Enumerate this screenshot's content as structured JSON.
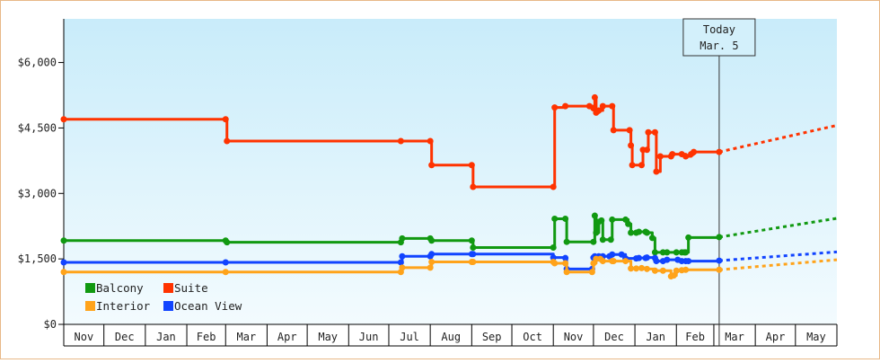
{
  "chart_data": {
    "type": "line",
    "title": "",
    "xlabel": "",
    "ylabel": "",
    "ylim": [
      0,
      7000
    ],
    "y_ticks": [
      {
        "value": 0,
        "label": "$0"
      },
      {
        "value": 1500,
        "label": "$1,500"
      },
      {
        "value": 3000,
        "label": "$3,000"
      },
      {
        "value": 4500,
        "label": "$4,500"
      },
      {
        "value": 6000,
        "label": "$6,000"
      }
    ],
    "x_months": [
      "Nov",
      "Dec",
      "Jan",
      "Feb",
      "Mar",
      "Apr",
      "May",
      "Jun",
      "Jul",
      "Aug",
      "Sep",
      "Oct",
      "Nov",
      "Dec",
      "Jan",
      "Feb",
      "Mar",
      "Apr",
      "May"
    ],
    "x_start": "2023-11-01",
    "x_end": "2025-06-01",
    "today": {
      "label_line1": "Today",
      "label_line2": "Mar. 5",
      "date": "2025-03-05"
    },
    "projection_end": "2025-06-01",
    "grid": false,
    "legend_position": "bottom-left",
    "series": [
      {
        "name": "Suite",
        "color": "#ff3300",
        "points": [
          [
            "2023-11-01",
            4700
          ],
          [
            "2024-03-01",
            4700
          ],
          [
            "2024-03-02",
            4200
          ],
          [
            "2024-07-10",
            4200
          ],
          [
            "2024-08-01",
            4200
          ],
          [
            "2024-08-02",
            3650
          ],
          [
            "2024-09-01",
            3650
          ],
          [
            "2024-09-02",
            3150
          ],
          [
            "2024-11-01",
            3150
          ],
          [
            "2024-11-02",
            4970
          ],
          [
            "2024-11-10",
            5000
          ],
          [
            "2024-11-28",
            5000
          ],
          [
            "2024-12-01",
            4950
          ],
          [
            "2024-12-02",
            5200
          ],
          [
            "2024-12-03",
            4850
          ],
          [
            "2024-12-05",
            4900
          ],
          [
            "2024-12-08",
            5000
          ],
          [
            "2024-12-15",
            5000
          ],
          [
            "2024-12-16",
            4450
          ],
          [
            "2024-12-28",
            4450
          ],
          [
            "2024-12-29",
            4100
          ],
          [
            "2024-12-30",
            3650
          ],
          [
            "2025-01-06",
            3650
          ],
          [
            "2025-01-07",
            4000
          ],
          [
            "2025-01-10",
            4000
          ],
          [
            "2025-01-11",
            4400
          ],
          [
            "2025-01-16",
            4400
          ],
          [
            "2025-01-17",
            3500
          ],
          [
            "2025-01-20",
            3850
          ],
          [
            "2025-01-28",
            3850
          ],
          [
            "2025-01-29",
            3900
          ],
          [
            "2025-02-05",
            3900
          ],
          [
            "2025-02-08",
            3850
          ],
          [
            "2025-02-12",
            3900
          ],
          [
            "2025-02-14",
            3950
          ],
          [
            "2025-03-05",
            3950
          ]
        ],
        "projection": [
          [
            "2025-03-05",
            3950
          ],
          [
            "2025-06-01",
            4560
          ]
        ]
      },
      {
        "name": "Balcony",
        "color": "#119911",
        "points": [
          [
            "2023-11-01",
            1920
          ],
          [
            "2024-03-01",
            1920
          ],
          [
            "2024-03-02",
            1880
          ],
          [
            "2024-07-10",
            1880
          ],
          [
            "2024-07-11",
            1970
          ],
          [
            "2024-08-01",
            1970
          ],
          [
            "2024-08-02",
            1920
          ],
          [
            "2024-09-01",
            1920
          ],
          [
            "2024-09-02",
            1760
          ],
          [
            "2024-11-01",
            1760
          ],
          [
            "2024-11-02",
            2420
          ],
          [
            "2024-11-10",
            2420
          ],
          [
            "2024-11-11",
            1890
          ],
          [
            "2024-12-01",
            1890
          ],
          [
            "2024-12-02",
            2490
          ],
          [
            "2024-12-03",
            2100
          ],
          [
            "2024-12-05",
            2350
          ],
          [
            "2024-12-07",
            2380
          ],
          [
            "2024-12-08",
            1940
          ],
          [
            "2024-12-14",
            1940
          ],
          [
            "2024-12-15",
            2400
          ],
          [
            "2024-12-25",
            2400
          ],
          [
            "2024-12-27",
            2300
          ],
          [
            "2024-12-29",
            2100
          ],
          [
            "2025-01-02",
            2100
          ],
          [
            "2025-01-04",
            2120
          ],
          [
            "2025-01-09",
            2120
          ],
          [
            "2025-01-10",
            2100
          ],
          [
            "2025-01-14",
            1980
          ],
          [
            "2025-01-16",
            1650
          ],
          [
            "2025-01-22",
            1650
          ],
          [
            "2025-01-25",
            1650
          ],
          [
            "2025-02-01",
            1650
          ],
          [
            "2025-02-05",
            1650
          ],
          [
            "2025-02-07",
            1650
          ],
          [
            "2025-02-08",
            1650
          ],
          [
            "2025-02-10",
            1990
          ],
          [
            "2025-03-05",
            2000
          ]
        ],
        "projection": [
          [
            "2025-03-05",
            2000
          ],
          [
            "2025-06-01",
            2430
          ]
        ]
      },
      {
        "name": "Ocean View",
        "color": "#1144ff",
        "points": [
          [
            "2023-11-01",
            1420
          ],
          [
            "2024-03-01",
            1420
          ],
          [
            "2024-07-10",
            1420
          ],
          [
            "2024-07-11",
            1560
          ],
          [
            "2024-08-01",
            1560
          ],
          [
            "2024-08-02",
            1610
          ],
          [
            "2024-09-01",
            1610
          ],
          [
            "2024-09-02",
            1610
          ],
          [
            "2024-11-01",
            1530
          ],
          [
            "2024-11-10",
            1520
          ],
          [
            "2024-11-11",
            1270
          ],
          [
            "2024-11-30",
            1270
          ],
          [
            "2024-12-01",
            1530
          ],
          [
            "2024-12-02",
            1560
          ],
          [
            "2024-12-03",
            1500
          ],
          [
            "2024-12-05",
            1560
          ],
          [
            "2024-12-08",
            1560
          ],
          [
            "2024-12-13",
            1560
          ],
          [
            "2024-12-15",
            1600
          ],
          [
            "2024-12-22",
            1600
          ],
          [
            "2024-12-25",
            1510
          ],
          [
            "2025-01-02",
            1510
          ],
          [
            "2025-01-04",
            1520
          ],
          [
            "2025-01-09",
            1520
          ],
          [
            "2025-01-10",
            1530
          ],
          [
            "2025-01-16",
            1520
          ],
          [
            "2025-01-17",
            1450
          ],
          [
            "2025-01-22",
            1450
          ],
          [
            "2025-01-25",
            1480
          ],
          [
            "2025-02-02",
            1480
          ],
          [
            "2025-02-05",
            1450
          ],
          [
            "2025-02-08",
            1450
          ],
          [
            "2025-02-10",
            1450
          ],
          [
            "2025-03-05",
            1460
          ]
        ],
        "projection": [
          [
            "2025-03-05",
            1460
          ],
          [
            "2025-06-01",
            1660
          ]
        ]
      },
      {
        "name": "Interior",
        "color": "#ffa31a",
        "points": [
          [
            "2023-11-01",
            1200
          ],
          [
            "2024-03-01",
            1200
          ],
          [
            "2024-07-10",
            1200
          ],
          [
            "2024-07-11",
            1300
          ],
          [
            "2024-08-01",
            1300
          ],
          [
            "2024-08-02",
            1430
          ],
          [
            "2024-09-01",
            1430
          ],
          [
            "2024-09-02",
            1430
          ],
          [
            "2024-11-01",
            1430
          ],
          [
            "2024-11-02",
            1400
          ],
          [
            "2024-11-10",
            1400
          ],
          [
            "2024-11-11",
            1200
          ],
          [
            "2024-11-30",
            1200
          ],
          [
            "2024-12-01",
            1400
          ],
          [
            "2024-12-03",
            1500
          ],
          [
            "2024-12-06",
            1500
          ],
          [
            "2024-12-08",
            1450
          ],
          [
            "2024-12-15",
            1450
          ],
          [
            "2024-12-16",
            1450
          ],
          [
            "2024-12-25",
            1450
          ],
          [
            "2024-12-29",
            1280
          ],
          [
            "2025-01-02",
            1280
          ],
          [
            "2025-01-06",
            1290
          ],
          [
            "2025-01-10",
            1270
          ],
          [
            "2025-01-16",
            1230
          ],
          [
            "2025-01-22",
            1230
          ],
          [
            "2025-01-28",
            1100
          ],
          [
            "2025-01-30",
            1120
          ],
          [
            "2025-02-01",
            1230
          ],
          [
            "2025-02-05",
            1240
          ],
          [
            "2025-02-08",
            1250
          ],
          [
            "2025-03-05",
            1250
          ]
        ],
        "projection": [
          [
            "2025-03-05",
            1250
          ],
          [
            "2025-06-01",
            1480
          ]
        ]
      }
    ],
    "legend": [
      {
        "name": "Balcony",
        "color": "#119911"
      },
      {
        "name": "Suite",
        "color": "#ff3300"
      },
      {
        "name": "Interior",
        "color": "#ffa31a"
      },
      {
        "name": "Ocean View",
        "color": "#1144ff"
      }
    ]
  }
}
